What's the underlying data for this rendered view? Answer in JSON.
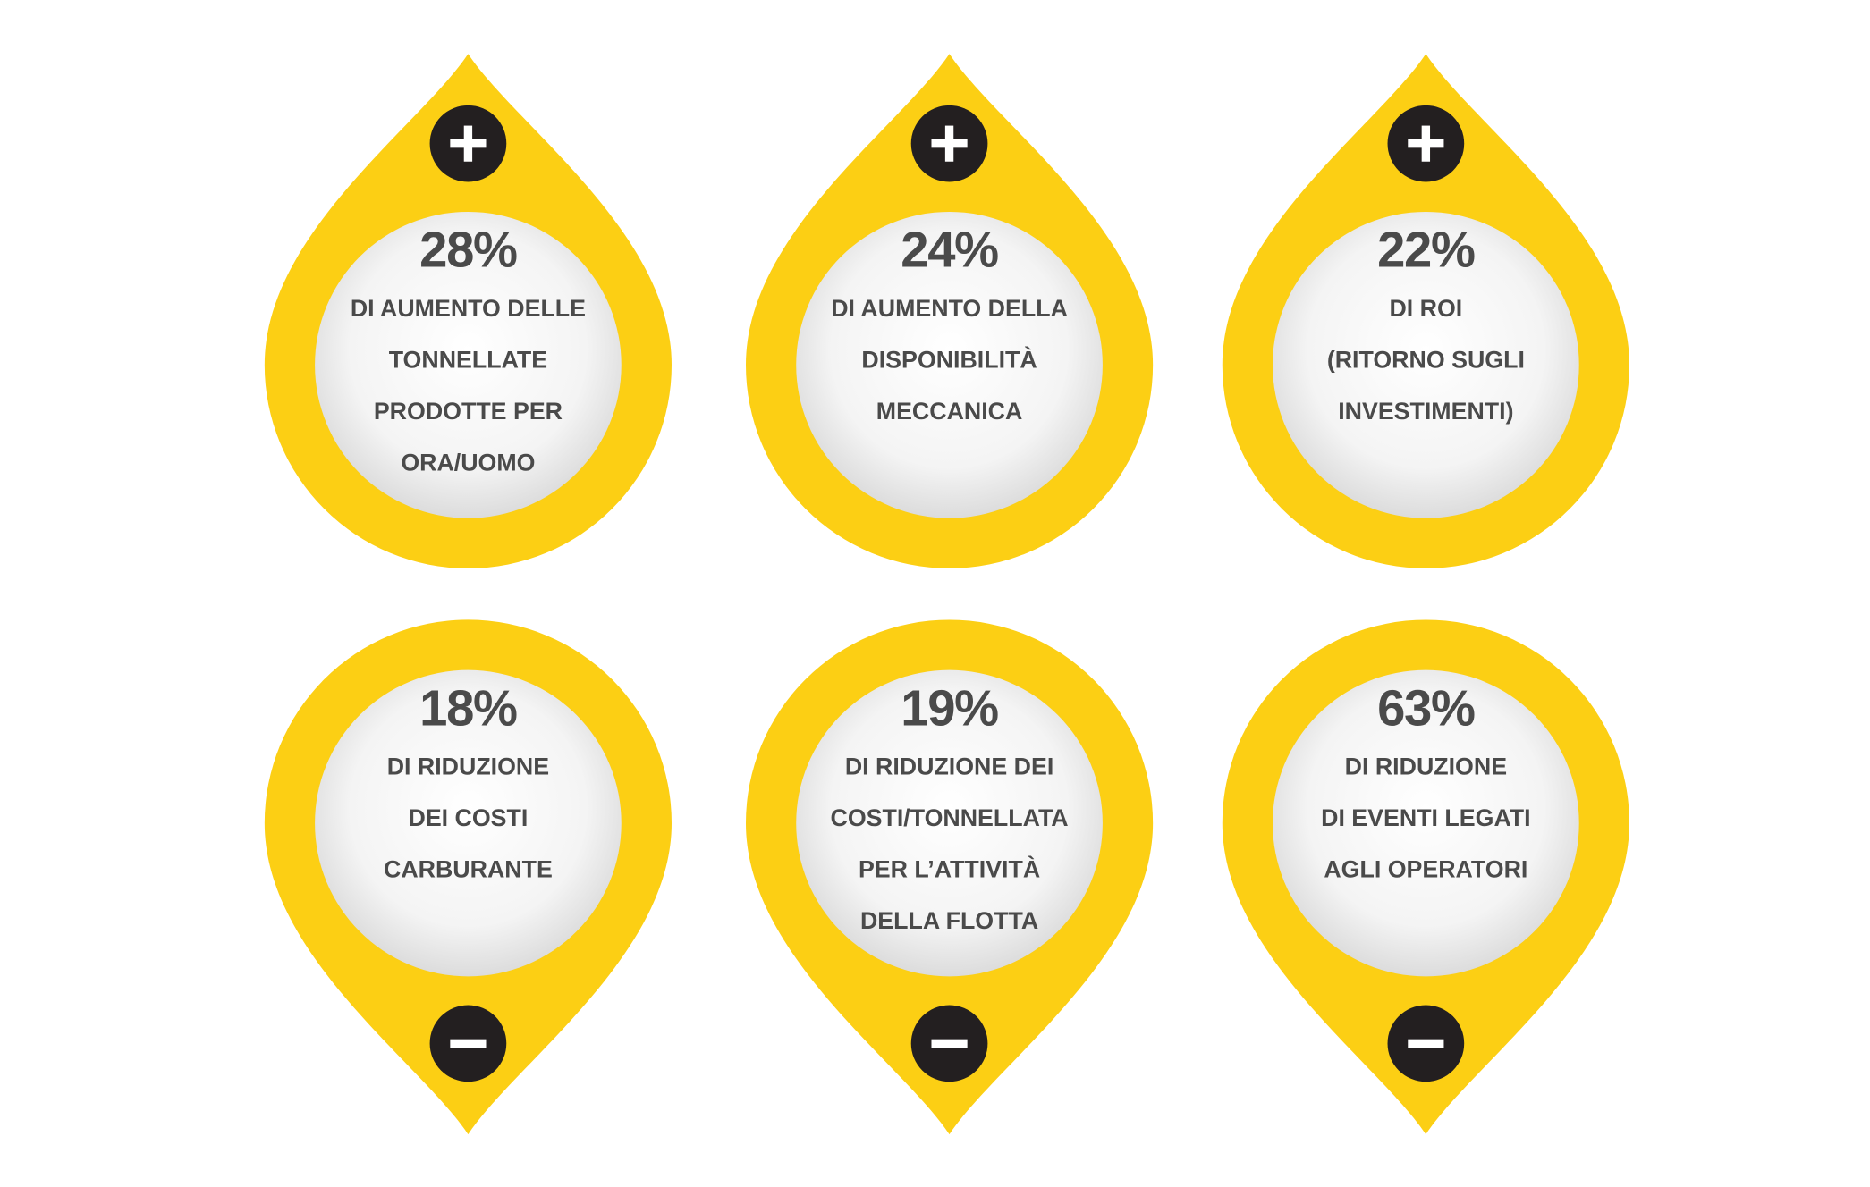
{
  "items": [
    {
      "value": "28%",
      "lines": [
        "DI AUMENTO DELLE",
        "TONNELLATE",
        "PRODOTTE PER",
        "ORA/UOMO"
      ]
    },
    {
      "value": "24%",
      "lines": [
        "DI AUMENTO DELLA",
        "DISPONIBILITÀ",
        "MECCANICA"
      ]
    },
    {
      "value": "22%",
      "lines": [
        "DI ROI",
        "(RITORNO SUGLI",
        "INVESTIMENTI)"
      ]
    },
    {
      "value": "18%",
      "lines": [
        "DI RIDUZIONE",
        "DEI COSTI",
        "CARBURANTE"
      ]
    },
    {
      "value": "19%",
      "lines": [
        "DI RIDUZIONE DEI",
        "COSTI/TONNELLATA",
        "PER L’ATTIVITÀ",
        "DELLA FLOTTA"
      ]
    },
    {
      "value": "63%",
      "lines": [
        "DI RIDUZIONE",
        "DI EVENTI LEGATI",
        "AGLI OPERATORI"
      ]
    }
  ]
}
